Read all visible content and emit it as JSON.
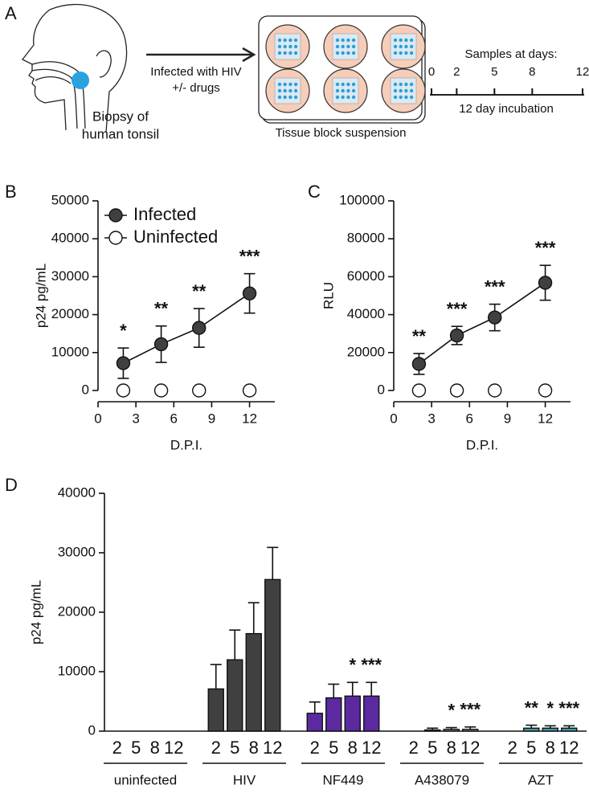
{
  "panel_a": {
    "label": "A",
    "biopsy_caption": [
      "Biopsy of",
      "human tonsil"
    ],
    "arrow_text": [
      "Infected with HIV",
      "+/- drugs"
    ],
    "plate_caption": "Tissue block suspension",
    "timeline": {
      "title": "Samples at days:",
      "days": [
        0,
        2,
        5,
        8,
        12
      ],
      "caption": "12 day incubation"
    }
  },
  "chart_data": [
    {
      "type": "line",
      "panel": "B",
      "ylabel": "p24 pg/mL",
      "xlabel": "D.P.I.",
      "xlim": [
        0,
        14
      ],
      "ylim": [
        0,
        50000
      ],
      "xticks": [
        0,
        3,
        6,
        9,
        12
      ],
      "yticks": [
        0,
        10000,
        20000,
        30000,
        40000,
        50000
      ],
      "legend": "upper left",
      "x": [
        2,
        5,
        8,
        12
      ],
      "series": [
        {
          "name": "Infected",
          "color": "#404040",
          "linestyle": "solid",
          "values": [
            7200,
            12200,
            16500,
            25600
          ],
          "errors": [
            4000,
            4800,
            5100,
            5200
          ],
          "annotations": [
            "*",
            "**",
            "**",
            "***"
          ]
        },
        {
          "name": "Uninfected",
          "color": "#ffffff",
          "linestyle": "none",
          "values": [
            0,
            0,
            0,
            0
          ],
          "errors": [
            0,
            0,
            0,
            0
          ],
          "annotations": [
            null,
            null,
            null,
            null
          ]
        }
      ]
    },
    {
      "type": "line",
      "panel": "C",
      "ylabel": "RLU",
      "xlabel": "D.P.I.",
      "xlim": [
        0,
        14
      ],
      "ylim": [
        0,
        100000
      ],
      "xticks": [
        0,
        3,
        6,
        9,
        12
      ],
      "yticks": [
        0,
        20000,
        40000,
        60000,
        80000,
        100000
      ],
      "x": [
        2,
        5,
        8,
        12
      ],
      "series": [
        {
          "name": "Infected",
          "color": "#404040",
          "linestyle": "solid",
          "values": [
            14000,
            29000,
            38500,
            56800
          ],
          "errors": [
            5500,
            4800,
            7000,
            9200
          ],
          "annotations": [
            "**",
            "***",
            "***",
            "***"
          ]
        },
        {
          "name": "Uninfected",
          "color": "#ffffff",
          "linestyle": "none",
          "values": [
            0,
            0,
            0,
            0
          ],
          "errors": [
            0,
            0,
            0,
            0
          ],
          "annotations": [
            null,
            null,
            null,
            null
          ]
        }
      ]
    },
    {
      "type": "bar",
      "panel": "D",
      "ylabel": "p24 pg/mL",
      "ylim": [
        0,
        40000
      ],
      "yticks": [
        0,
        10000,
        20000,
        30000,
        40000
      ],
      "subcategories": [
        "2",
        "5",
        "8",
        "12"
      ],
      "series": [
        {
          "name": "uninfected",
          "color": "#404040",
          "values": [
            0,
            0,
            0,
            0
          ],
          "errors": [
            0,
            0,
            0,
            0
          ],
          "annotations": [
            null,
            null,
            null,
            null
          ]
        },
        {
          "name": "HIV",
          "color": "#404040",
          "values": [
            7100,
            12000,
            16400,
            25500
          ],
          "errors": [
            4100,
            5000,
            5200,
            5400
          ],
          "annotations": [
            null,
            null,
            null,
            null
          ]
        },
        {
          "name": "NF449",
          "color": "#5b2aa0",
          "values": [
            3000,
            5600,
            5900,
            5900
          ],
          "errors": [
            1900,
            2300,
            2300,
            2300
          ],
          "annotations": [
            null,
            null,
            "*",
            "***"
          ]
        },
        {
          "name": "A438079",
          "color": "#8a8a8a",
          "values": [
            0,
            200,
            300,
            300
          ],
          "errors": [
            0,
            300,
            300,
            400
          ],
          "annotations": [
            null,
            null,
            "*",
            "***"
          ]
        },
        {
          "name": "AZT",
          "color": "#3a9ba8",
          "values": [
            0,
            500,
            500,
            500
          ],
          "errors": [
            0,
            500,
            400,
            400
          ],
          "annotations": [
            null,
            "**",
            "*",
            "***"
          ]
        }
      ]
    }
  ]
}
